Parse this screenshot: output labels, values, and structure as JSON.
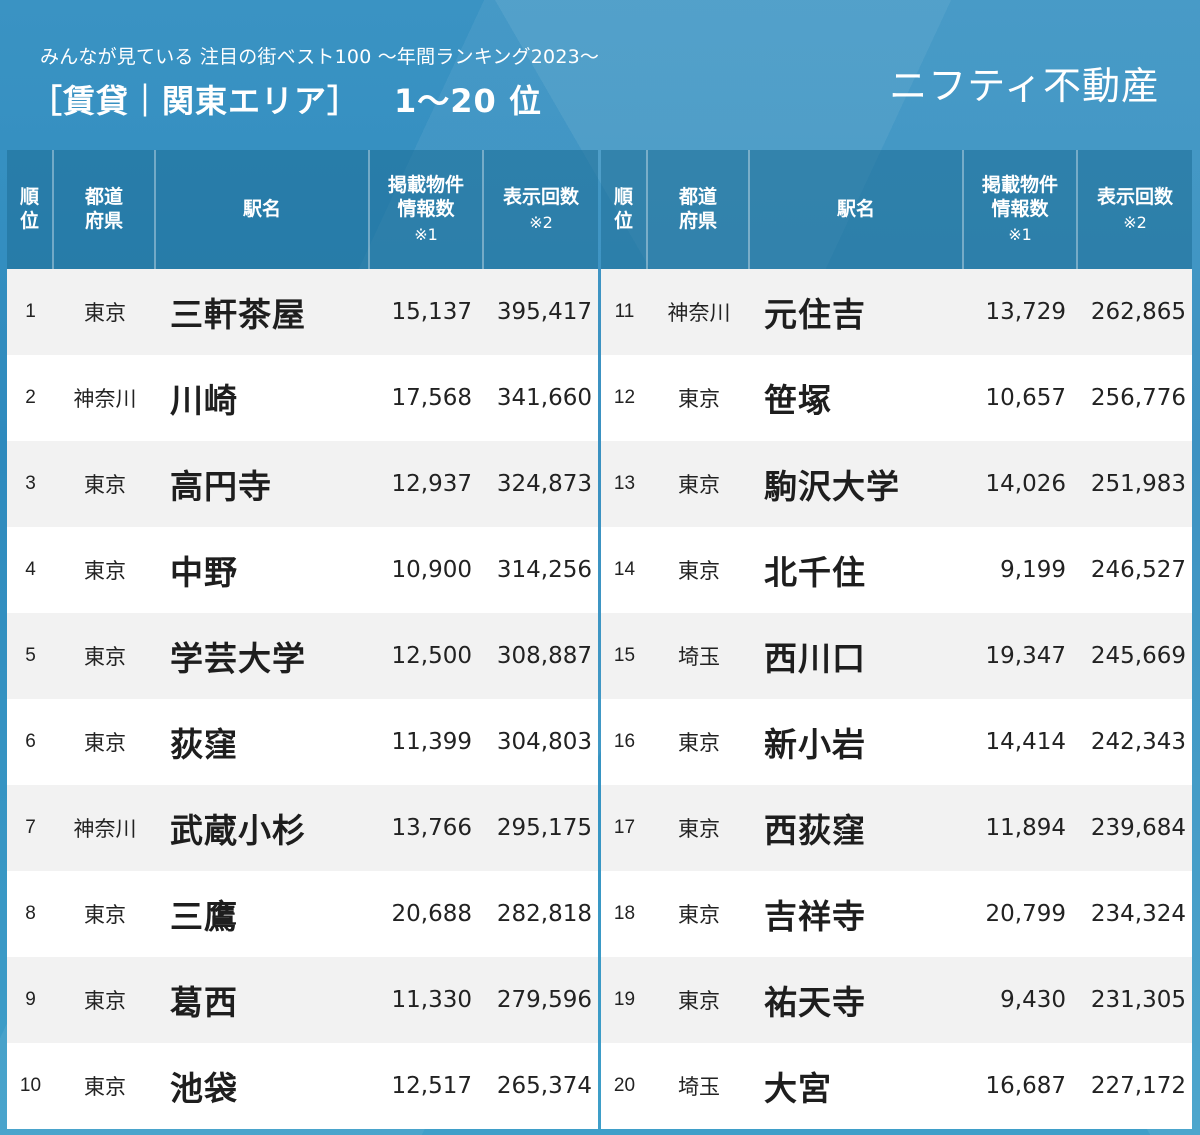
{
  "header": {
    "subtitle": "みんなが見ている 注目の街ベスト100 〜年間ランキング2023〜",
    "title": "［賃貸｜関東エリア］",
    "range": "1〜20 位",
    "brand": "ニフティ不動産"
  },
  "columns": {
    "rank": [
      "順",
      "位"
    ],
    "pref": [
      "都道",
      "府県"
    ],
    "name": "駅名",
    "count": [
      "掲載物件",
      "情報数",
      "※1"
    ],
    "views": [
      "表示回数",
      "※2"
    ]
  },
  "colors": {
    "background": "#2f8bbd",
    "row_odd": "#f2f2f2",
    "row_even": "#ffffff",
    "header_text": "#ffffff"
  },
  "left": [
    {
      "rank": "1",
      "pref": "東京",
      "name": "三軒茶屋",
      "count": "15,137",
      "views": "395,417"
    },
    {
      "rank": "2",
      "pref": "神奈川",
      "name": "川崎",
      "count": "17,568",
      "views": "341,660"
    },
    {
      "rank": "3",
      "pref": "東京",
      "name": "高円寺",
      "count": "12,937",
      "views": "324,873"
    },
    {
      "rank": "4",
      "pref": "東京",
      "name": "中野",
      "count": "10,900",
      "views": "314,256"
    },
    {
      "rank": "5",
      "pref": "東京",
      "name": "学芸大学",
      "count": "12,500",
      "views": "308,887"
    },
    {
      "rank": "6",
      "pref": "東京",
      "name": "荻窪",
      "count": "11,399",
      "views": "304,803"
    },
    {
      "rank": "7",
      "pref": "神奈川",
      "name": "武蔵小杉",
      "count": "13,766",
      "views": "295,175"
    },
    {
      "rank": "8",
      "pref": "東京",
      "name": "三鷹",
      "count": "20,688",
      "views": "282,818"
    },
    {
      "rank": "9",
      "pref": "東京",
      "name": "葛西",
      "count": "11,330",
      "views": "279,596"
    },
    {
      "rank": "10",
      "pref": "東京",
      "name": "池袋",
      "count": "12,517",
      "views": "265,374"
    }
  ],
  "right": [
    {
      "rank": "11",
      "pref": "神奈川",
      "name": "元住吉",
      "count": "13,729",
      "views": "262,865"
    },
    {
      "rank": "12",
      "pref": "東京",
      "name": "笹塚",
      "count": "10,657",
      "views": "256,776"
    },
    {
      "rank": "13",
      "pref": "東京",
      "name": "駒沢大学",
      "count": "14,026",
      "views": "251,983"
    },
    {
      "rank": "14",
      "pref": "東京",
      "name": "北千住",
      "count": "9,199",
      "views": "246,527"
    },
    {
      "rank": "15",
      "pref": "埼玉",
      "name": "西川口",
      "count": "19,347",
      "views": "245,669"
    },
    {
      "rank": "16",
      "pref": "東京",
      "name": "新小岩",
      "count": "14,414",
      "views": "242,343"
    },
    {
      "rank": "17",
      "pref": "東京",
      "name": "西荻窪",
      "count": "11,894",
      "views": "239,684"
    },
    {
      "rank": "18",
      "pref": "東京",
      "name": "吉祥寺",
      "count": "20,799",
      "views": "234,324"
    },
    {
      "rank": "19",
      "pref": "東京",
      "name": "祐天寺",
      "count": "9,430",
      "views": "231,305"
    },
    {
      "rank": "20",
      "pref": "埼玉",
      "name": "大宮",
      "count": "16,687",
      "views": "227,172"
    }
  ]
}
